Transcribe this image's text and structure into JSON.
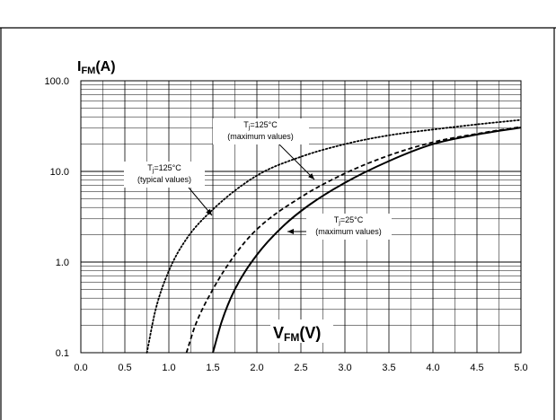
{
  "chart_data": {
    "type": "line",
    "y_axis_label": {
      "main": "I",
      "sub": "FM",
      "unit": "(A)"
    },
    "x_axis_label": {
      "main": "V",
      "sub": "FM",
      "unit": "(V)"
    },
    "x_scale": "linear",
    "y_scale": "log",
    "xlim": [
      0.0,
      5.0
    ],
    "ylim": [
      0.1,
      100.0
    ],
    "x_ticks": [
      "0.0",
      "0.5",
      "1.0",
      "1.5",
      "2.0",
      "2.5",
      "3.0",
      "3.5",
      "4.0",
      "4.5",
      "5.0"
    ],
    "y_ticks": [
      "0.1",
      "1.0",
      "10.0",
      "100.0"
    ],
    "grid": true,
    "series": [
      {
        "label_lines": [
          "T",
          "j",
          "=125°C",
          "(typical values)"
        ],
        "style": "dotted",
        "x": [
          0.75,
          0.85,
          1.0,
          1.2,
          1.5,
          2.0,
          2.5,
          3.0,
          3.5,
          4.0,
          4.5,
          5.0
        ],
        "y": [
          0.1,
          0.3,
          0.8,
          1.8,
          3.8,
          9.0,
          14.5,
          20.0,
          25.0,
          29.0,
          33.0,
          37.0
        ]
      },
      {
        "label_lines": [
          "T",
          "j",
          "=125°C",
          "(maximum values)"
        ],
        "style": "dashed",
        "x": [
          1.2,
          1.3,
          1.5,
          1.75,
          2.0,
          2.5,
          3.0,
          3.5,
          4.0,
          4.5,
          5.0
        ],
        "y": [
          0.1,
          0.2,
          0.5,
          1.2,
          2.3,
          5.2,
          9.5,
          15.0,
          21.0,
          26.0,
          31.0
        ]
      },
      {
        "label_lines": [
          "T",
          "j",
          "=25°C",
          "(maximum values)"
        ],
        "style": "solid",
        "x": [
          1.5,
          1.6,
          1.75,
          2.0,
          2.3,
          2.6,
          3.0,
          3.5,
          4.0,
          4.5,
          5.0
        ],
        "y": [
          0.1,
          0.22,
          0.5,
          1.2,
          2.5,
          4.3,
          7.5,
          13.0,
          20.0,
          25.5,
          30.5
        ]
      }
    ]
  }
}
